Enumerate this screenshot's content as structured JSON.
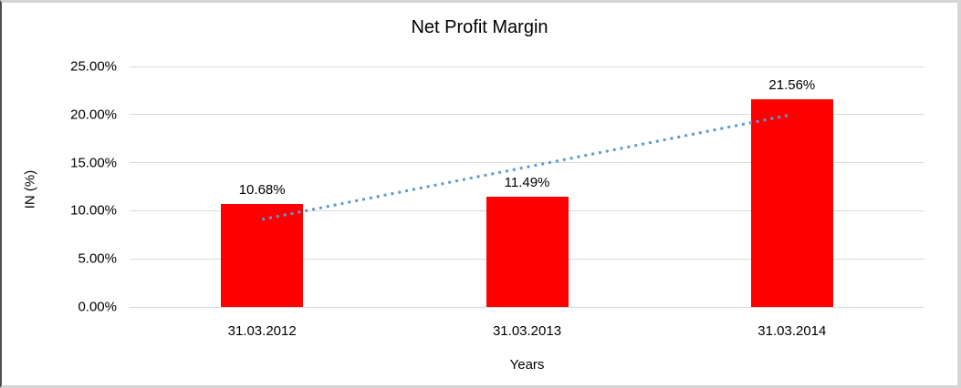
{
  "chart_data": {
    "type": "bar",
    "title": "Net Profit Margin",
    "xlabel": "Years",
    "ylabel": "IN (%)",
    "categories": [
      "31.03.2012",
      "31.03.2013",
      "31.03.2014"
    ],
    "values": [
      10.68,
      11.49,
      21.56
    ],
    "value_labels": [
      "10.68%",
      "11.49%",
      "21.56%"
    ],
    "ylim": [
      0,
      25
    ],
    "yticks": [
      "0.00%",
      "5.00%",
      "10.00%",
      "15.00%",
      "20.00%",
      "25.00%"
    ],
    "grid": "horizontal",
    "legend": "none",
    "bar_color": "#FF0000",
    "gridline_color": "#D9D9D9",
    "trendline": {
      "style": "dotted",
      "color": "#5B9BD5",
      "start_value": 9.1,
      "end_value": 20.0
    }
  }
}
